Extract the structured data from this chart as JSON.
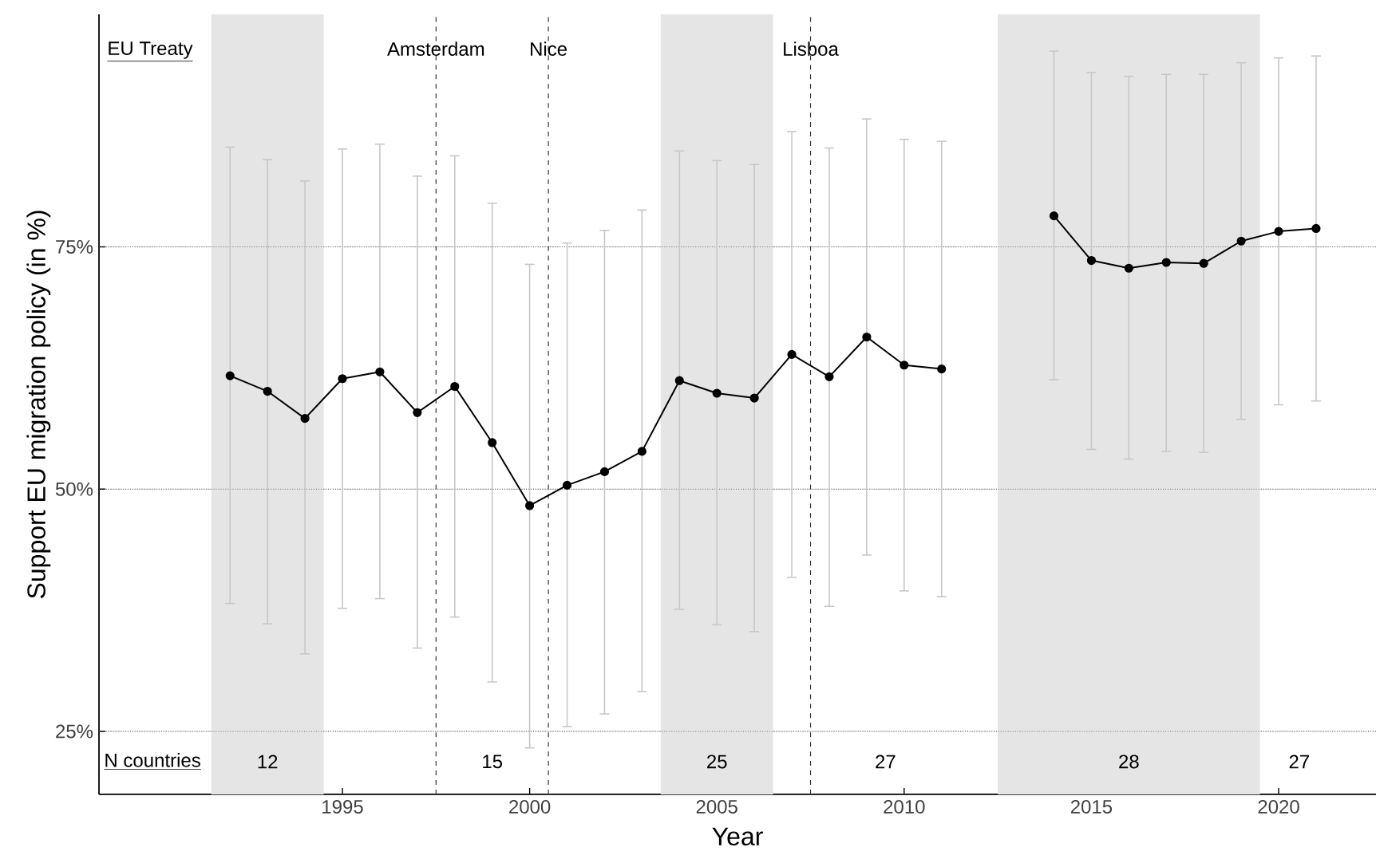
{
  "chart_data": {
    "type": "line",
    "xlabel": "Year",
    "ylabel": "Support EU migration policy (in %)",
    "x": [
      1992,
      1993,
      1994,
      1995,
      1996,
      1997,
      1998,
      1999,
      2000,
      2001,
      2002,
      2003,
      2004,
      2005,
      2006,
      2007,
      2008,
      2009,
      2010,
      2011,
      2012,
      2013,
      2014,
      2015,
      2016,
      2017,
      2018,
      2019,
      2020,
      2021
    ],
    "series": [
      {
        "color": "#000000",
        "values": [
          61.7,
          60.1,
          57.3,
          61.4,
          62.1,
          57.9,
          60.6,
          54.8,
          48.3,
          50.4,
          51.8,
          53.9,
          61.2,
          59.9,
          59.4,
          63.9,
          61.6,
          65.7,
          62.8,
          62.4,
          null,
          null,
          78.2,
          73.6,
          72.8,
          73.4,
          73.3,
          75.6,
          76.6,
          76.9
        ],
        "errors": [
          [
            38.2,
            85.3
          ],
          [
            36.1,
            84.0
          ],
          [
            33.0,
            81.8
          ],
          [
            37.7,
            85.1
          ],
          [
            38.7,
            85.6
          ],
          [
            33.6,
            82.3
          ],
          [
            36.8,
            84.4
          ],
          [
            30.1,
            79.5
          ],
          [
            23.3,
            73.2
          ],
          [
            25.5,
            75.4
          ],
          [
            26.8,
            76.7
          ],
          [
            29.1,
            78.8
          ],
          [
            37.6,
            84.9
          ],
          [
            36.0,
            83.9
          ],
          [
            35.3,
            83.5
          ],
          [
            40.9,
            86.9
          ],
          [
            37.9,
            85.2
          ],
          [
            43.2,
            88.2
          ],
          [
            39.5,
            86.1
          ],
          [
            38.9,
            85.9
          ],
          null,
          null,
          [
            61.3,
            95.2
          ],
          [
            54.1,
            93.0
          ],
          [
            53.1,
            92.6
          ],
          [
            53.9,
            92.8
          ],
          [
            53.8,
            92.8
          ],
          [
            57.2,
            94.0
          ],
          [
            58.7,
            94.5
          ],
          [
            59.1,
            94.7
          ]
        ]
      }
    ],
    "marker": "circle",
    "line_style": "solid",
    "grid": "y",
    "xlim": [
      1988.5,
      2022.6
    ],
    "ylim": [
      18.5,
      99
    ],
    "xticks": [
      1995,
      2000,
      2005,
      2010,
      2015,
      2020
    ],
    "yticks": [
      {
        "value": 25,
        "label": "25%"
      },
      {
        "value": 50,
        "label": "50%"
      },
      {
        "value": 75,
        "label": "75%"
      }
    ],
    "bands": [
      {
        "axis": "x",
        "from": 1991.5,
        "to": 1994.5,
        "color": "#e5e5e5"
      },
      {
        "axis": "x",
        "from": 2003.5,
        "to": 2006.5,
        "color": "#e5e5e5"
      },
      {
        "axis": "x",
        "from": 2012.5,
        "to": 2019.5,
        "color": "#e5e5e5"
      }
    ],
    "ref_lines": [
      {
        "axis": "x",
        "value": 1997.5,
        "label": "Amsterdam",
        "line_style": "dashed"
      },
      {
        "axis": "x",
        "value": 2000.5,
        "label": "Nice",
        "line_style": "dashed"
      },
      {
        "axis": "x",
        "value": 2007.5,
        "label": "Lisboa",
        "line_style": "dashed"
      }
    ],
    "annotations": [
      "EU Treaty",
      "N countries",
      "12",
      "15",
      "25",
      "27",
      "28",
      "27"
    ]
  }
}
